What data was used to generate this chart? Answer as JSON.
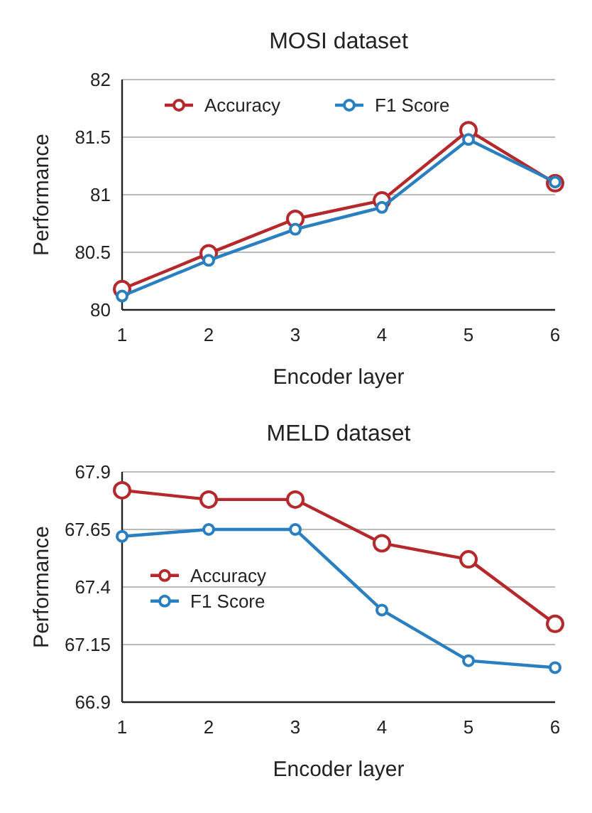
{
  "chart_data": [
    {
      "type": "line",
      "title": "MOSI dataset",
      "xlabel": "Encoder layer",
      "ylabel": "Performance",
      "x": [
        1,
        2,
        3,
        4,
        5,
        6
      ],
      "xlim": [
        1,
        6
      ],
      "xticks": [
        1,
        2,
        3,
        4,
        5,
        6
      ],
      "ylim": [
        80,
        82
      ],
      "yticks": [
        80,
        80.5,
        81,
        81.5,
        82
      ],
      "grid": "y",
      "legend": "top left",
      "marker": "circle",
      "line_style": "solid",
      "series": [
        {
          "name": "Accuracy",
          "color": "#b5282b",
          "values": [
            80.18,
            80.49,
            80.79,
            80.95,
            81.56,
            81.1
          ]
        },
        {
          "name": "F1 Score",
          "color": "#2a7fc1",
          "values": [
            80.12,
            80.43,
            80.7,
            80.89,
            81.48,
            81.11
          ]
        }
      ]
    },
    {
      "type": "line",
      "title": "MELD dataset",
      "xlabel": "Encoder layer",
      "ylabel": "Performance",
      "x": [
        1,
        2,
        3,
        4,
        5,
        6
      ],
      "xlim": [
        1,
        6
      ],
      "xticks": [
        1,
        2,
        3,
        4,
        5,
        6
      ],
      "ylim": [
        66.9,
        67.9
      ],
      "yticks": [
        66.9,
        67.15,
        67.4,
        67.65,
        67.9
      ],
      "grid": "y",
      "legend": "left",
      "marker": "circle",
      "line_style": "solid",
      "series": [
        {
          "name": "Accuracy",
          "color": "#b5282b",
          "values": [
            67.82,
            67.78,
            67.78,
            67.59,
            67.52,
            67.24
          ]
        },
        {
          "name": "F1 Score",
          "color": "#2a7fc1",
          "values": [
            67.62,
            67.65,
            67.65,
            67.3,
            67.08,
            67.05
          ]
        }
      ]
    }
  ]
}
